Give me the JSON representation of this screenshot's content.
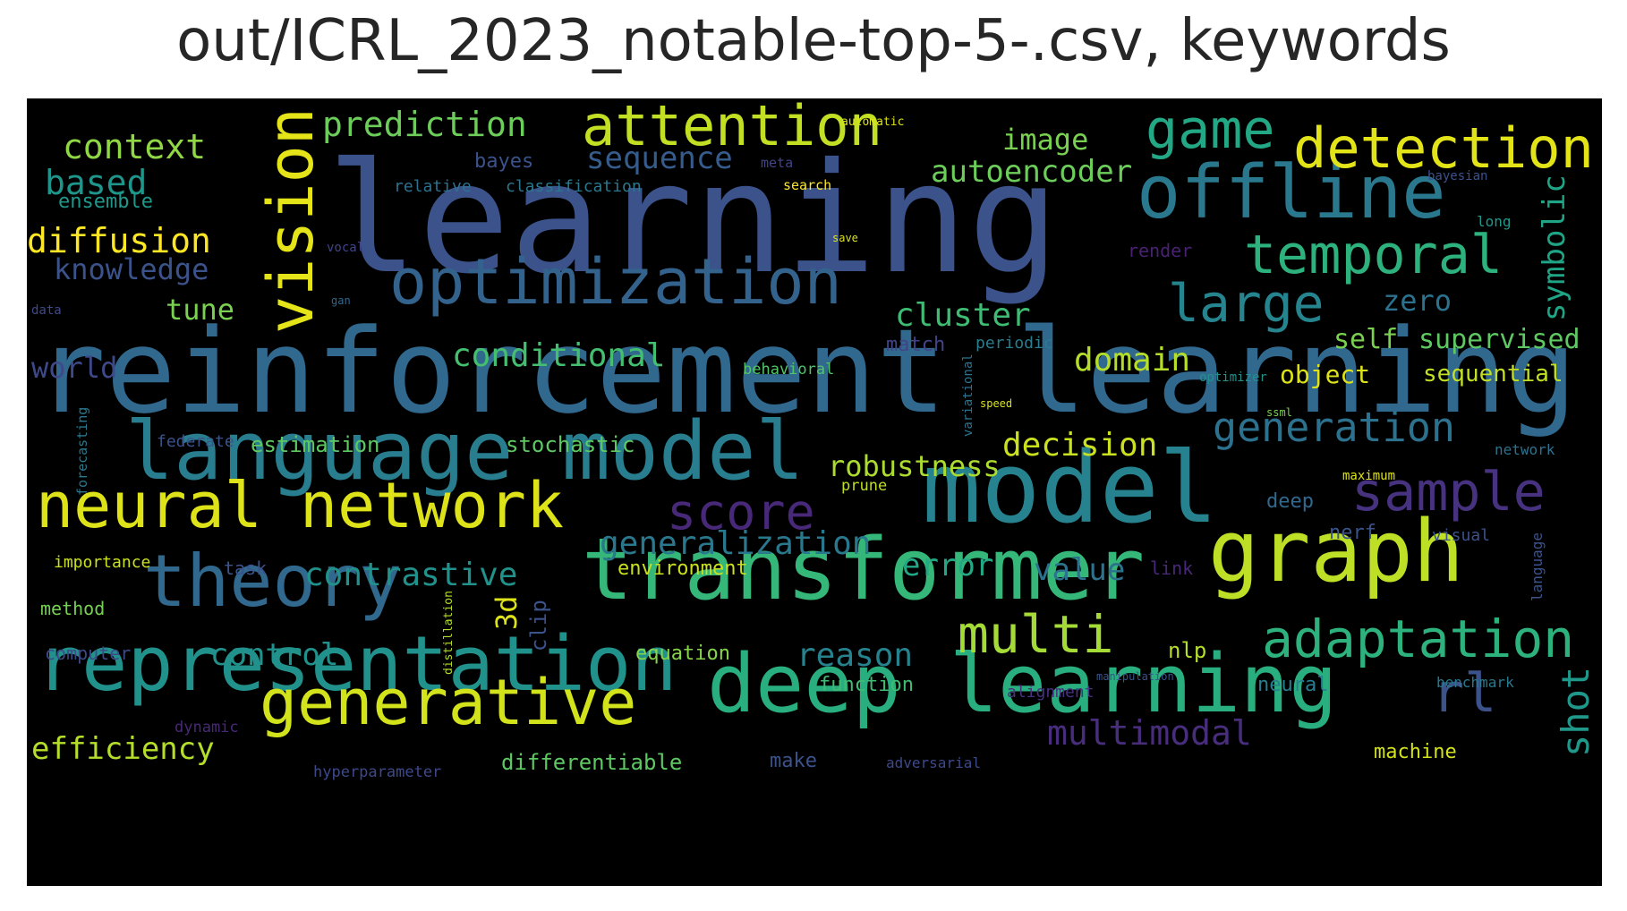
{
  "title": "out/ICRL_2023_notable-top-5-.csv, keywords",
  "colors": {
    "background": "#000000",
    "title": "#262626"
  },
  "words": [
    {
      "text": "learning",
      "color": "#3b528b"
    },
    {
      "text": "reinforcement learning",
      "color": "#31688e"
    },
    {
      "text": "model",
      "color": "#26828e"
    },
    {
      "text": "language model",
      "color": "#287d8e"
    },
    {
      "text": "transformer",
      "color": "#35b779"
    },
    {
      "text": "deep learning",
      "color": "#29af7f"
    },
    {
      "text": "representation",
      "color": "#21918c"
    },
    {
      "text": "graph",
      "color": "#bddf26"
    },
    {
      "text": "theory",
      "color": "#31688e"
    },
    {
      "text": "neural network",
      "color": "#dde318"
    },
    {
      "text": "generative",
      "color": "#d2e21b"
    },
    {
      "text": "offline",
      "color": "#2a788e"
    },
    {
      "text": "optimization",
      "color": "#33638d"
    },
    {
      "text": "vision",
      "color": "#e5e419"
    },
    {
      "text": "attention",
      "color": "#c2df23"
    },
    {
      "text": "detection",
      "color": "#e2e418"
    },
    {
      "text": "temporal",
      "color": "#2db27d"
    },
    {
      "text": "game",
      "color": "#22a884"
    },
    {
      "text": "sample",
      "color": "#46327e"
    },
    {
      "text": "score",
      "color": "#482878"
    },
    {
      "text": "adaptation",
      "color": "#2db27d"
    },
    {
      "text": "multi",
      "color": "#a5db36"
    },
    {
      "text": "large",
      "color": "#25848e"
    },
    {
      "text": "generation",
      "color": "#2c728e"
    },
    {
      "text": "rl",
      "color": "#3b528b"
    },
    {
      "text": "shot",
      "color": "#1f988b"
    },
    {
      "text": "multimodal",
      "color": "#472d7b"
    },
    {
      "text": "prediction",
      "color": "#6ccd5a"
    },
    {
      "text": "context",
      "color": "#8fd744"
    },
    {
      "text": "based",
      "color": "#1f968b"
    },
    {
      "text": "ensemble",
      "color": "#1f988b"
    },
    {
      "text": "diffusion",
      "color": "#fde725"
    },
    {
      "text": "knowledge",
      "color": "#3b528b"
    },
    {
      "text": "tune",
      "color": "#7ad151"
    },
    {
      "text": "world",
      "color": "#3e4989"
    },
    {
      "text": "sequence",
      "color": "#365c8d"
    },
    {
      "text": "bayes",
      "color": "#3b528b"
    },
    {
      "text": "relative",
      "color": "#2c728e"
    },
    {
      "text": "classification",
      "color": "#2a788e"
    },
    {
      "text": "meta",
      "color": "#414487"
    },
    {
      "text": "automatic",
      "color": "#dde318"
    },
    {
      "text": "search",
      "color": "#fde725"
    },
    {
      "text": "image",
      "color": "#7ad151"
    },
    {
      "text": "autoencoder",
      "color": "#6ccd5a"
    },
    {
      "text": "bayesian",
      "color": "#3b528b"
    },
    {
      "text": "long",
      "color": "#1f988b"
    },
    {
      "text": "symbolic",
      "color": "#20a486"
    },
    {
      "text": "zero",
      "color": "#2c728e"
    },
    {
      "text": "self",
      "color": "#7ad151"
    },
    {
      "text": "supervised",
      "color": "#5ec962"
    },
    {
      "text": "object",
      "color": "#dde318"
    },
    {
      "text": "sequential",
      "color": "#c2df23"
    },
    {
      "text": "cluster",
      "color": "#3fbc73"
    },
    {
      "text": "conditional",
      "color": "#44bf70"
    },
    {
      "text": "domain",
      "color": "#b5de2b"
    },
    {
      "text": "match",
      "color": "#414487"
    },
    {
      "text": "periodic",
      "color": "#287d8e"
    },
    {
      "text": "behavioral",
      "color": "#52c569"
    },
    {
      "text": "optimizer",
      "color": "#21918c"
    },
    {
      "text": "render",
      "color": "#482173"
    },
    {
      "text": "save",
      "color": "#dde318"
    },
    {
      "text": "gan",
      "color": "#31688e"
    },
    {
      "text": "data",
      "color": "#3e4989"
    },
    {
      "text": "vocal",
      "color": "#414487"
    },
    {
      "text": "speed",
      "color": "#d8e219"
    },
    {
      "text": "variational",
      "color": "#2c728e"
    },
    {
      "text": "ssml",
      "color": "#7ad151"
    },
    {
      "text": "robustness",
      "color": "#addc30"
    },
    {
      "text": "decision",
      "color": "#cae11f"
    },
    {
      "text": "estimation",
      "color": "#5ec962"
    },
    {
      "text": "stochastic",
      "color": "#5ec962"
    },
    {
      "text": "federate",
      "color": "#3b528b"
    },
    {
      "text": "forecasting",
      "color": "#2a788e"
    },
    {
      "text": "maximum",
      "color": "#dde318"
    },
    {
      "text": "network",
      "color": "#2c728e"
    },
    {
      "text": "prune",
      "color": "#bddf26"
    },
    {
      "text": "deep",
      "color": "#31688e"
    },
    {
      "text": "generalization",
      "color": "#2a788e"
    },
    {
      "text": "environment",
      "color": "#c8e020"
    },
    {
      "text": "contrastive",
      "color": "#21918c"
    },
    {
      "text": "error",
      "color": "#22a884"
    },
    {
      "text": "value",
      "color": "#2c728e"
    },
    {
      "text": "link",
      "color": "#482878"
    },
    {
      "text": "nerf",
      "color": "#3b528b"
    },
    {
      "text": "visual",
      "color": "#3b528b"
    },
    {
      "text": "importance",
      "color": "#cae11f"
    },
    {
      "text": "task",
      "color": "#3b528b"
    },
    {
      "text": "method",
      "color": "#75d054"
    },
    {
      "text": "computer",
      "color": "#3e4989"
    },
    {
      "text": "control",
      "color": "#21918c"
    },
    {
      "text": "3d",
      "color": "#dde318"
    },
    {
      "text": "clip",
      "color": "#3b528b"
    },
    {
      "text": "distillation",
      "color": "#b5de2b"
    },
    {
      "text": "equation",
      "color": "#86d549"
    },
    {
      "text": "reason",
      "color": "#26828e"
    },
    {
      "text": "function",
      "color": "#3fbc73"
    },
    {
      "text": "nlp",
      "color": "#b5de2b"
    },
    {
      "text": "manipulation",
      "color": "#3b528b"
    },
    {
      "text": "alignment",
      "color": "#46327e"
    },
    {
      "text": "neural",
      "color": "#287d8e"
    },
    {
      "text": "benchmark",
      "color": "#2a788e"
    },
    {
      "text": "language",
      "color": "#3b528b"
    },
    {
      "text": "dynamic",
      "color": "#482878"
    },
    {
      "text": "efficiency",
      "color": "#b5de2b"
    },
    {
      "text": "hyperparameter",
      "color": "#3e4989"
    },
    {
      "text": "differentiable",
      "color": "#5ec962"
    },
    {
      "text": "make",
      "color": "#3b528b"
    },
    {
      "text": "adversarial",
      "color": "#3e4989"
    },
    {
      "text": "machine",
      "color": "#d2e21b"
    }
  ]
}
